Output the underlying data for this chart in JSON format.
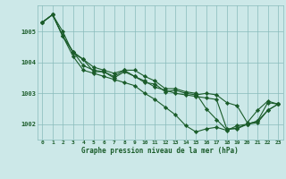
{
  "background_color": "#cce8e8",
  "plot_bg_color": "#cce8e8",
  "grid_color": "#88bbbb",
  "line_color": "#1a5c2a",
  "marker_color": "#1a5c2a",
  "title": "Graphe pression niveau de la mer (hPa)",
  "xlim": [
    -0.5,
    23.5
  ],
  "ylim": [
    1001.5,
    1005.85
  ],
  "yticks": [
    1002,
    1003,
    1004,
    1005
  ],
  "xticks": [
    0,
    1,
    2,
    3,
    4,
    5,
    6,
    7,
    8,
    9,
    10,
    11,
    12,
    13,
    14,
    15,
    16,
    17,
    18,
    19,
    20,
    21,
    22,
    23
  ],
  "series": [
    [
      1005.3,
      1005.55,
      1004.85,
      1004.2,
      1003.75,
      1003.65,
      1003.55,
      1003.45,
      1003.35,
      1003.25,
      1003.0,
      1002.8,
      1002.55,
      1002.3,
      1001.95,
      1001.75,
      1001.85,
      1001.9,
      1001.8,
      1001.95,
      1002.0,
      1002.1,
      1002.7,
      1002.65
    ],
    [
      1005.3,
      1005.55,
      1005.0,
      1004.3,
      1004.1,
      1003.7,
      1003.7,
      1003.5,
      1003.7,
      1003.55,
      1003.35,
      1003.3,
      1003.05,
      1003.1,
      1003.0,
      1002.95,
      1003.0,
      1002.95,
      1002.7,
      1002.6,
      1002.05,
      1002.45,
      1002.75,
      1002.65
    ],
    [
      1005.3,
      1005.55,
      1004.85,
      1004.35,
      1003.9,
      1003.75,
      1003.7,
      1003.55,
      1003.75,
      1003.55,
      1003.4,
      1003.2,
      1003.1,
      1003.0,
      1002.95,
      1002.9,
      1002.85,
      1002.8,
      1001.85,
      1001.85,
      1002.0,
      1002.05,
      1002.45,
      1002.65
    ],
    [
      1005.3,
      1005.55,
      1004.85,
      1004.35,
      1004.1,
      1003.85,
      1003.75,
      1003.65,
      1003.75,
      1003.75,
      1003.55,
      1003.4,
      1003.15,
      1003.15,
      1003.05,
      1003.0,
      1002.5,
      1002.15,
      1001.82,
      1001.88,
      1002.0,
      1002.1,
      1002.45,
      1002.65
    ]
  ],
  "title_fontsize": 5.5,
  "tick_fontsize": 4.5,
  "ytick_fontsize": 5.0,
  "linewidth": 0.8,
  "markersize": 2.2
}
